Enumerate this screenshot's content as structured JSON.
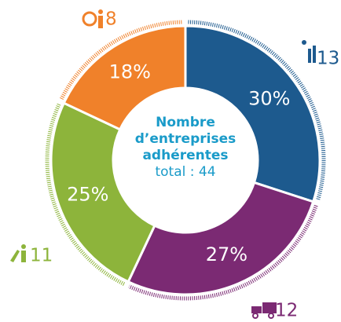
{
  "chart_data": {
    "type": "donut",
    "title": "Nombre d’entreprises adhérentes",
    "subtitle": "total : 44",
    "values": [
      30,
      27,
      25,
      18
    ],
    "value_labels": [
      "30%",
      "27%",
      "25%",
      "18%"
    ],
    "counts": [
      13,
      12,
      11,
      8
    ],
    "colors": [
      "#1d5a8e",
      "#7b2a73",
      "#8db43b",
      "#f0812a"
    ]
  }
}
